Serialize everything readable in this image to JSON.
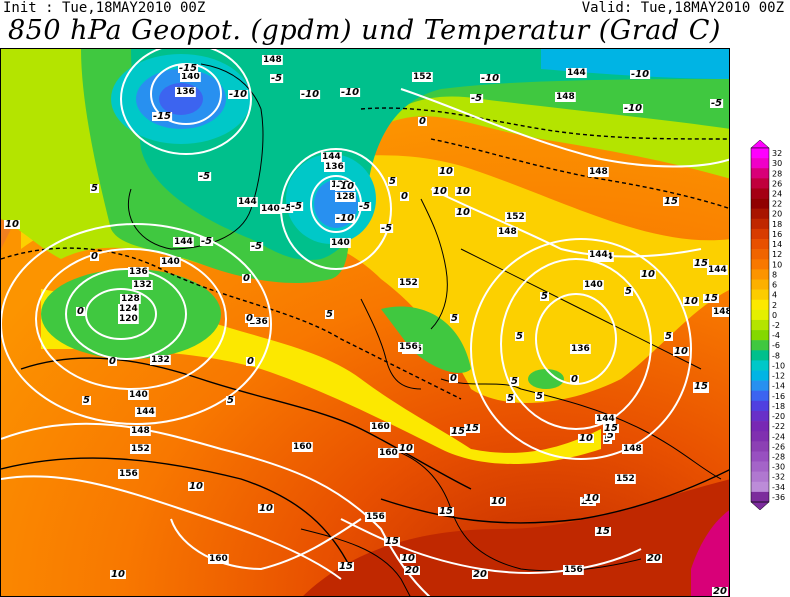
{
  "header": {
    "init_label": "Init : Tue,18MAY2010 00Z",
    "valid_label": "Valid: Tue,18MAY2010 00Z",
    "title": "850 hPa Geopot. (gpdm) und Temperatur (Grad C)"
  },
  "legend": {
    "values": [
      "32",
      "30",
      "28",
      "26",
      "24",
      "22",
      "20",
      "18",
      "16",
      "14",
      "12",
      "10",
      "8",
      "6",
      "4",
      "2",
      "0",
      "-2",
      "-4",
      "-6",
      "-8",
      "-10",
      "-12",
      "-14",
      "-16",
      "-18",
      "-20",
      "-22",
      "-24",
      "-26",
      "-28",
      "-30",
      "-32",
      "-34",
      "-36"
    ],
    "colors": [
      "#ff00ff",
      "#f000c8",
      "#d80078",
      "#c0003c",
      "#a40014",
      "#900000",
      "#a81400",
      "#c02800",
      "#d83c00",
      "#e85000",
      "#f06400",
      "#f87800",
      "#fc9400",
      "#fcb000",
      "#fccc00",
      "#fce800",
      "#e4f000",
      "#b4e400",
      "#84d800",
      "#40c840",
      "#00c08c",
      "#00c8c8",
      "#00b4e4",
      "#2890f0",
      "#3c64f0",
      "#5040e0",
      "#6830c8",
      "#7828b4",
      "#8030b0",
      "#8c40b4",
      "#9850c0",
      "#a464c8",
      "#b078d0",
      "#bc8cd8",
      "#7c2c9c"
    ]
  },
  "map": {
    "geopotential_labels": [
      {
        "text": "140"
      },
      {
        "text": "136"
      },
      {
        "text": "148"
      },
      {
        "text": "152"
      },
      {
        "text": "144"
      },
      {
        "text": "148"
      },
      {
        "text": "144"
      },
      {
        "text": "136"
      },
      {
        "text": "132"
      },
      {
        "text": "128"
      },
      {
        "text": "140"
      },
      {
        "text": "144"
      },
      {
        "text": "140"
      },
      {
        "text": "136"
      },
      {
        "text": "132"
      },
      {
        "text": "128"
      },
      {
        "text": "124"
      },
      {
        "text": "120"
      },
      {
        "text": "136"
      },
      {
        "text": "132"
      },
      {
        "text": "140"
      },
      {
        "text": "144"
      },
      {
        "text": "148"
      },
      {
        "text": "152"
      },
      {
        "text": "156"
      },
      {
        "text": "160"
      },
      {
        "text": "160"
      },
      {
        "text": "160"
      },
      {
        "text": "156"
      },
      {
        "text": "160"
      },
      {
        "text": "156"
      },
      {
        "text": "152"
      },
      {
        "text": "148"
      },
      {
        "text": "152"
      },
      {
        "text": "156"
      },
      {
        "text": "144"
      },
      {
        "text": "140"
      },
      {
        "text": "136"
      },
      {
        "text": "144"
      },
      {
        "text": "148"
      },
      {
        "text": "152"
      },
      {
        "text": "148"
      },
      {
        "text": "144"
      },
      {
        "text": "144"
      },
      {
        "text": "140"
      },
      {
        "text": "144"
      },
      {
        "text": "148"
      },
      {
        "text": "156"
      }
    ],
    "temperature_labels": [
      {
        "text": "-15"
      },
      {
        "text": "-10"
      },
      {
        "text": "-15"
      },
      {
        "text": "-10"
      },
      {
        "text": "-5"
      },
      {
        "text": "-10"
      },
      {
        "text": "-10"
      },
      {
        "text": "-5"
      },
      {
        "text": "-10"
      },
      {
        "text": "-5"
      },
      {
        "text": "-10"
      },
      {
        "text": "-5"
      },
      {
        "text": "-10"
      },
      {
        "text": "-5"
      },
      {
        "text": "-5"
      },
      {
        "text": "-10"
      },
      {
        "text": "-5"
      },
      {
        "text": "-5"
      },
      {
        "text": "0"
      },
      {
        "text": "0"
      },
      {
        "text": "-5"
      },
      {
        "text": "-5"
      },
      {
        "text": "5"
      },
      {
        "text": "5"
      },
      {
        "text": "0"
      },
      {
        "text": "0"
      },
      {
        "text": "0"
      },
      {
        "text": "0"
      },
      {
        "text": "5"
      },
      {
        "text": "5"
      },
      {
        "text": "10"
      },
      {
        "text": "10"
      },
      {
        "text": "10"
      },
      {
        "text": "10"
      },
      {
        "text": "5"
      },
      {
        "text": "5"
      },
      {
        "text": "0"
      },
      {
        "text": "0"
      },
      {
        "text": "5"
      },
      {
        "text": "5"
      },
      {
        "text": "5"
      },
      {
        "text": "10"
      },
      {
        "text": "10"
      },
      {
        "text": "10"
      },
      {
        "text": "10"
      },
      {
        "text": "15"
      },
      {
        "text": "15"
      },
      {
        "text": "15"
      },
      {
        "text": "15"
      },
      {
        "text": "15"
      },
      {
        "text": "10"
      },
      {
        "text": "10"
      },
      {
        "text": "10"
      },
      {
        "text": "10"
      },
      {
        "text": "15"
      },
      {
        "text": "15"
      },
      {
        "text": "20"
      },
      {
        "text": "20"
      },
      {
        "text": "15"
      },
      {
        "text": "20"
      },
      {
        "text": "20"
      },
      {
        "text": "10"
      },
      {
        "text": "10"
      },
      {
        "text": "5"
      },
      {
        "text": "5"
      },
      {
        "text": "5"
      },
      {
        "text": "15"
      },
      {
        "text": "10"
      },
      {
        "text": "15"
      },
      {
        "text": "15"
      },
      {
        "text": "10"
      },
      {
        "text": "15"
      },
      {
        "text": "5"
      },
      {
        "text": "10"
      },
      {
        "text": "5"
      },
      {
        "text": "0"
      },
      {
        "text": "0"
      },
      {
        "text": "5"
      }
    ]
  }
}
